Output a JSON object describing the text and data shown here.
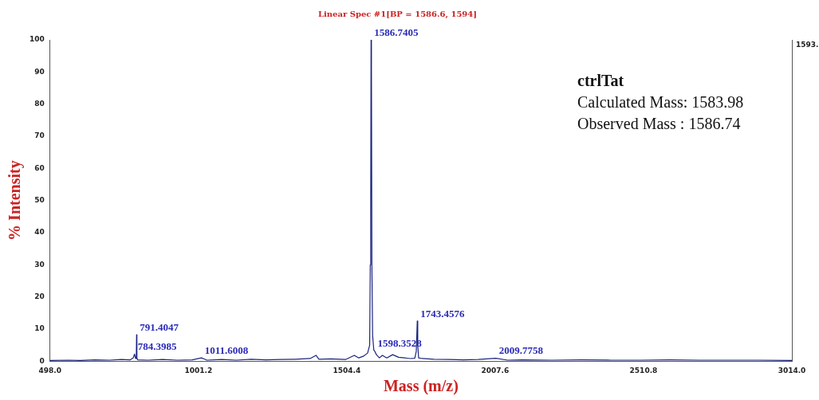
{
  "chart_data": {
    "type": "line",
    "title": "Linear Spec #1[BP = 1586.6, 1594]",
    "xlabel": "Mass (m/z)",
    "ylabel": "% Intensity",
    "x": [
      498,
      560,
      600,
      650,
      700,
      740,
      770,
      780,
      784.4,
      788,
      790.5,
      791.4,
      792.5,
      795,
      830,
      880,
      930,
      980,
      1011.6,
      1030,
      1080,
      1130,
      1180,
      1230,
      1280,
      1330,
      1380,
      1400,
      1410,
      1450,
      1500,
      1530,
      1545,
      1560,
      1575,
      1582,
      1584,
      1585.5,
      1586.74,
      1588,
      1589.5,
      1592,
      1596,
      1598.35,
      1605,
      1615,
      1625,
      1640,
      1660,
      1680,
      1700,
      1720,
      1735,
      1740,
      1743.46,
      1745,
      1748,
      1760,
      1800,
      1850,
      1900,
      1950,
      2009.78,
      2050,
      2100,
      2200,
      2300,
      2400,
      2500,
      2600,
      2700,
      2800,
      2900,
      3014
    ],
    "series": [
      {
        "color": "#1a237e",
        "values": [
          0.2,
          0.3,
          0.2,
          0.4,
          0.3,
          0.5,
          0.4,
          1.0,
          2.2,
          0.8,
          1.5,
          8.2,
          1.0,
          0.4,
          0.3,
          0.5,
          0.3,
          0.4,
          1.0,
          0.3,
          0.5,
          0.3,
          0.6,
          0.4,
          0.5,
          0.6,
          0.8,
          1.8,
          0.6,
          0.7,
          0.5,
          1.8,
          1.0,
          1.5,
          2.5,
          5,
          30,
          46,
          100,
          92,
          30,
          8,
          3.5,
          3.2,
          2.0,
          1.0,
          1.8,
          1.0,
          2.0,
          1.2,
          1.0,
          0.8,
          0.9,
          3,
          12.5,
          5,
          1,
          0.8,
          0.6,
          0.5,
          0.4,
          0.5,
          0.9,
          0.3,
          0.4,
          0.3,
          0.4,
          0.3,
          0.3,
          0.4,
          0.3,
          0.3,
          0.3,
          0.2
        ]
      }
    ],
    "xlim": [
      498,
      3014
    ],
    "xticks": [
      {
        "value": 498,
        "label": "498.0"
      },
      {
        "value": 1001.2,
        "label": "1001.2"
      },
      {
        "value": 1504.4,
        "label": "1504.4"
      },
      {
        "value": 2007.6,
        "label": "2007.6"
      },
      {
        "value": 2510.8,
        "label": "2510.8"
      },
      {
        "value": 3014,
        "label": "3014.0"
      }
    ],
    "ylim": [
      0,
      100
    ],
    "yticks": [
      0,
      10,
      20,
      30,
      40,
      50,
      60,
      70,
      80,
      90,
      100
    ],
    "grid": false,
    "legend": false,
    "marker": "none",
    "line_style": "solid",
    "annotations": [
      {
        "text": "1586.7405",
        "x": 1586.74,
        "y": 100
      },
      {
        "text": "791.4047",
        "x": 791.4,
        "y": 8.2
      },
      {
        "text": "784.3985",
        "x": 784.4,
        "y": 2.2
      },
      {
        "text": "1011.6008",
        "x": 1011.6,
        "y": 1.0
      },
      {
        "text": "1598.3528",
        "x": 1598.35,
        "y": 3.2
      },
      {
        "text": "1743.4576",
        "x": 1743.46,
        "y": 12.5
      },
      {
        "text": "2009.7758",
        "x": 2009.78,
        "y": 0.9
      },
      "ctrlTat",
      "Calculated Mass: 1583.98",
      "Observed Mass : 1586.74",
      "1593."
    ]
  }
}
